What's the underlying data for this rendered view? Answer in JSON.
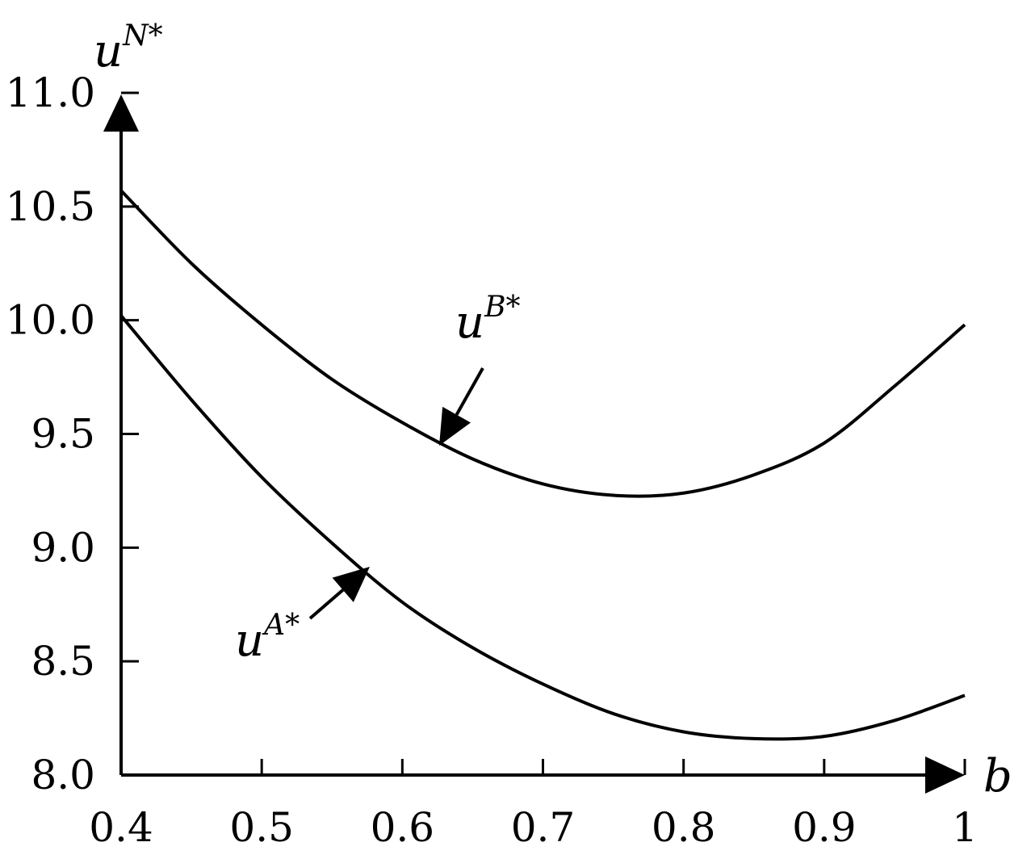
{
  "chart_data": {
    "type": "line",
    "ylabel_base": "u",
    "ylabel_sup": "N*",
    "xlabel": "b",
    "xlim": [
      0.4,
      1
    ],
    "ylim": [
      8.0,
      11.0
    ],
    "x_ticks": [
      "0.4",
      "0.5",
      "0.6",
      "0.7",
      "0.8",
      "0.9",
      "1"
    ],
    "y_ticks": [
      "8.0",
      "8.5",
      "9.0",
      "9.5",
      "10.0",
      "10.5",
      "11.0"
    ],
    "grid": false,
    "series": [
      {
        "name_base": "u",
        "name_sup": "B*",
        "x": [
          0.4,
          0.45,
          0.5,
          0.55,
          0.6,
          0.65,
          0.7,
          0.75,
          0.8,
          0.85,
          0.9,
          0.95,
          1.0
        ],
        "y": [
          10.57,
          10.25,
          9.98,
          9.74,
          9.55,
          9.39,
          9.28,
          9.23,
          9.24,
          9.32,
          9.46,
          9.71,
          9.98
        ]
      },
      {
        "name_base": "u",
        "name_sup": "A*",
        "x": [
          0.4,
          0.45,
          0.5,
          0.55,
          0.6,
          0.65,
          0.7,
          0.75,
          0.8,
          0.85,
          0.9,
          0.95,
          1.0
        ],
        "y": [
          10.02,
          9.65,
          9.31,
          9.02,
          8.76,
          8.56,
          8.4,
          8.27,
          8.19,
          8.16,
          8.17,
          8.24,
          8.35
        ]
      }
    ]
  }
}
